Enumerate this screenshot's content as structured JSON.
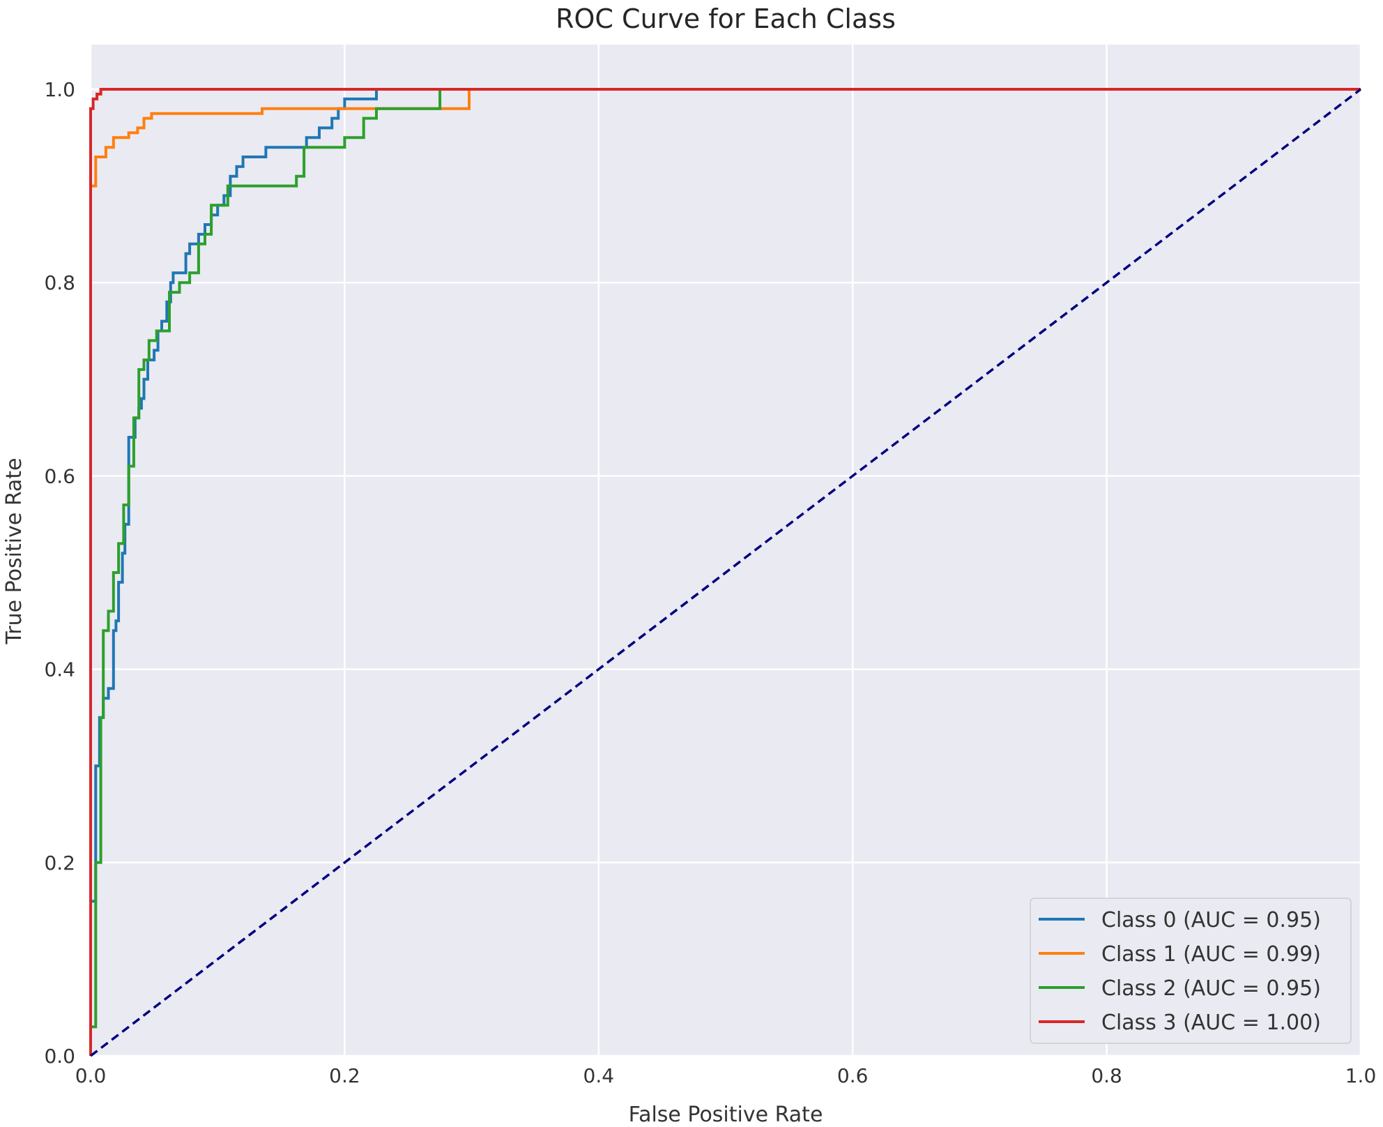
{
  "chart_data": {
    "type": "line",
    "title": "ROC Curve for Each Class",
    "xlabel": "False Positive Rate",
    "ylabel": "True Positive Rate",
    "xlim": [
      0.0,
      1.0
    ],
    "ylim": [
      0.0,
      1.05
    ],
    "xticks": [
      "0.0",
      "0.2",
      "0.4",
      "0.6",
      "0.8",
      "1.0"
    ],
    "yticks": [
      "0.0",
      "0.2",
      "0.4",
      "0.6",
      "0.8",
      "1.0"
    ],
    "grid": true,
    "legend_position": "lower-right",
    "background": "#eaeaf2",
    "series": [
      {
        "name": "Class 0 (AUC = 0.95)",
        "color": "#1f77b4",
        "x": [
          0.0,
          0.0,
          0.004,
          0.004,
          0.007,
          0.007,
          0.01,
          0.01,
          0.014,
          0.014,
          0.018,
          0.018,
          0.02,
          0.02,
          0.022,
          0.022,
          0.025,
          0.025,
          0.027,
          0.027,
          0.03,
          0.03,
          0.035,
          0.035,
          0.038,
          0.038,
          0.04,
          0.04,
          0.042,
          0.042,
          0.045,
          0.045,
          0.05,
          0.05,
          0.053,
          0.053,
          0.056,
          0.056,
          0.06,
          0.06,
          0.063,
          0.063,
          0.065,
          0.065,
          0.075,
          0.075,
          0.078,
          0.078,
          0.085,
          0.085,
          0.09,
          0.09,
          0.095,
          0.095,
          0.1,
          0.1,
          0.105,
          0.105,
          0.11,
          0.11,
          0.115,
          0.115,
          0.12,
          0.12,
          0.138,
          0.138,
          0.17,
          0.17,
          0.18,
          0.18,
          0.19,
          0.19,
          0.195,
          0.195,
          0.2,
          0.2,
          0.225,
          0.225,
          0.248,
          0.248,
          0.258,
          0.258,
          0.272,
          0.272,
          0.275,
          0.275,
          1.0
        ],
        "y": [
          0.0,
          0.16,
          0.16,
          0.3,
          0.3,
          0.35,
          0.35,
          0.37,
          0.37,
          0.38,
          0.38,
          0.44,
          0.44,
          0.45,
          0.45,
          0.49,
          0.49,
          0.52,
          0.52,
          0.55,
          0.55,
          0.64,
          0.64,
          0.66,
          0.66,
          0.67,
          0.67,
          0.68,
          0.68,
          0.7,
          0.7,
          0.72,
          0.72,
          0.73,
          0.73,
          0.75,
          0.75,
          0.76,
          0.76,
          0.78,
          0.78,
          0.8,
          0.8,
          0.81,
          0.81,
          0.83,
          0.83,
          0.84,
          0.84,
          0.85,
          0.85,
          0.86,
          0.86,
          0.87,
          0.87,
          0.88,
          0.88,
          0.89,
          0.89,
          0.91,
          0.91,
          0.92,
          0.92,
          0.93,
          0.93,
          0.94,
          0.94,
          0.95,
          0.95,
          0.96,
          0.96,
          0.97,
          0.97,
          0.98,
          0.98,
          0.99,
          0.99,
          1.0,
          1.0,
          1.0,
          1.0,
          1.0,
          1.0,
          1.0,
          1.0,
          1.0,
          1.0
        ]
      },
      {
        "name": "Class 1 (AUC = 0.99)",
        "color": "#ff7f0e",
        "x": [
          0.0,
          0.0,
          0.004,
          0.004,
          0.012,
          0.012,
          0.018,
          0.018,
          0.03,
          0.03,
          0.037,
          0.037,
          0.042,
          0.042,
          0.048,
          0.048,
          0.135,
          0.135,
          0.298,
          0.298,
          1.0
        ],
        "y": [
          0.0,
          0.9,
          0.9,
          0.93,
          0.93,
          0.94,
          0.94,
          0.95,
          0.95,
          0.955,
          0.955,
          0.96,
          0.96,
          0.97,
          0.97,
          0.975,
          0.975,
          0.98,
          0.98,
          1.0,
          1.0
        ]
      },
      {
        "name": "Class 2 (AUC = 0.95)",
        "color": "#2ca02c",
        "x": [
          0.0,
          0.0,
          0.004,
          0.004,
          0.008,
          0.008,
          0.01,
          0.01,
          0.014,
          0.014,
          0.018,
          0.018,
          0.022,
          0.022,
          0.026,
          0.026,
          0.03,
          0.03,
          0.034,
          0.034,
          0.038,
          0.038,
          0.042,
          0.042,
          0.046,
          0.046,
          0.052,
          0.052,
          0.062,
          0.062,
          0.07,
          0.07,
          0.078,
          0.078,
          0.085,
          0.085,
          0.09,
          0.09,
          0.095,
          0.095,
          0.108,
          0.108,
          0.162,
          0.162,
          0.168,
          0.168,
          0.2,
          0.2,
          0.215,
          0.215,
          0.225,
          0.225,
          0.275,
          0.275,
          1.0
        ],
        "y": [
          0.0,
          0.03,
          0.03,
          0.2,
          0.2,
          0.35,
          0.35,
          0.44,
          0.44,
          0.46,
          0.46,
          0.5,
          0.5,
          0.53,
          0.53,
          0.57,
          0.57,
          0.61,
          0.61,
          0.66,
          0.66,
          0.71,
          0.71,
          0.72,
          0.72,
          0.74,
          0.74,
          0.75,
          0.75,
          0.79,
          0.79,
          0.8,
          0.8,
          0.81,
          0.81,
          0.84,
          0.84,
          0.85,
          0.85,
          0.88,
          0.88,
          0.9,
          0.9,
          0.91,
          0.91,
          0.94,
          0.94,
          0.95,
          0.95,
          0.97,
          0.97,
          0.98,
          0.98,
          1.0,
          1.0
        ]
      },
      {
        "name": "Class 3 (AUC = 1.00)",
        "color": "#d62728",
        "x": [
          0.0,
          0.0,
          0.002,
          0.002,
          0.005,
          0.005,
          0.008,
          0.008,
          1.0
        ],
        "y": [
          0.0,
          0.98,
          0.98,
          0.99,
          0.99,
          0.995,
          0.995,
          1.0,
          1.0
        ]
      },
      {
        "name": "",
        "color": "#000080",
        "dashed": true,
        "x": [
          0.0,
          1.0
        ],
        "y": [
          0.0,
          1.0
        ]
      }
    ]
  }
}
